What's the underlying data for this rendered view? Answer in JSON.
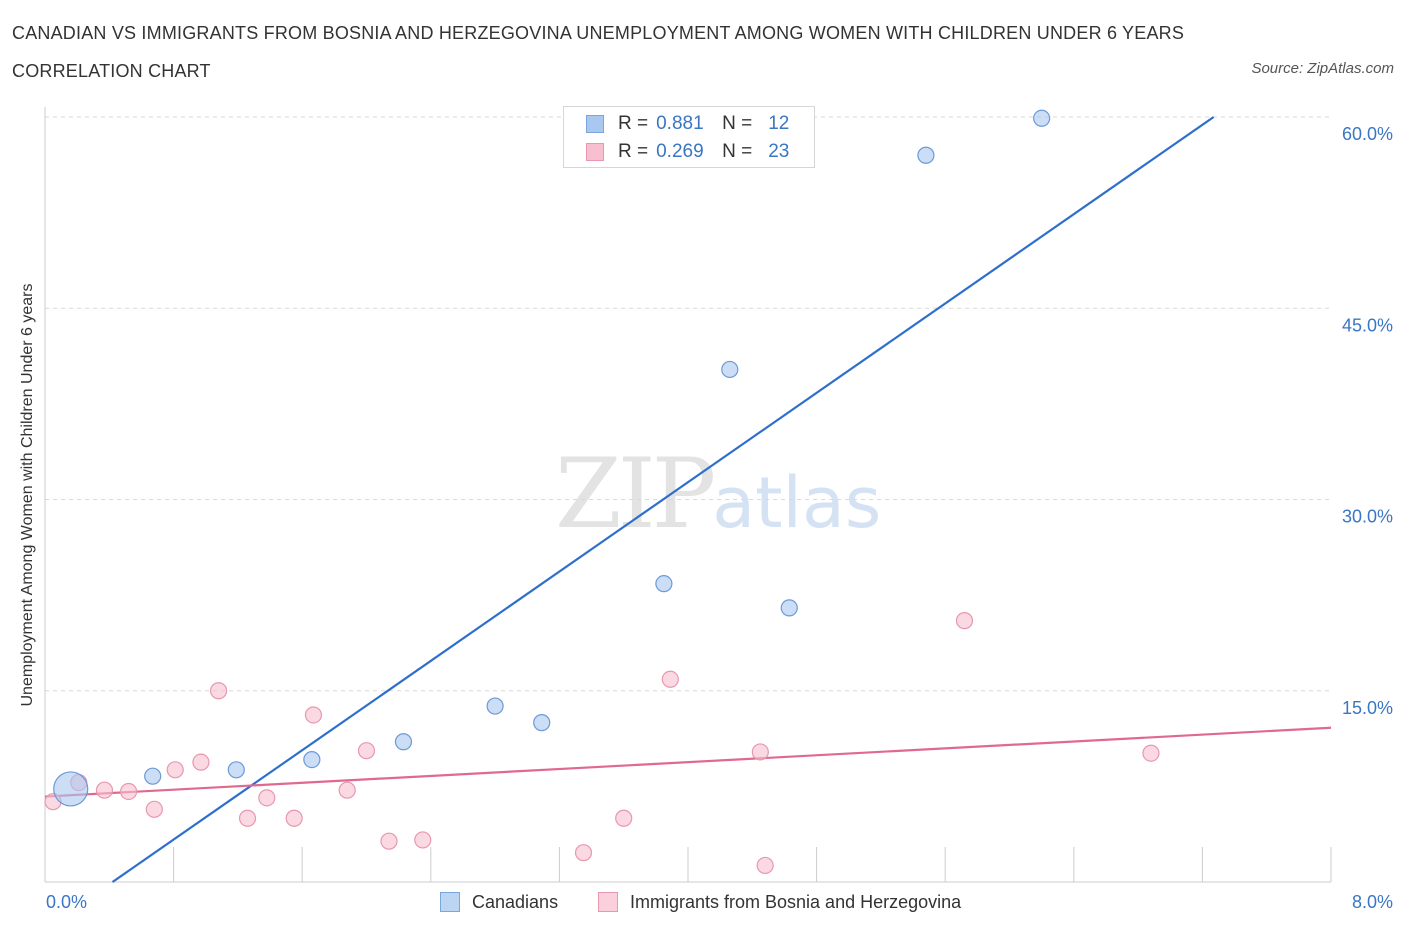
{
  "title": "CANADIAN VS IMMIGRANTS FROM BOSNIA AND HERZEGOVINA UNEMPLOYMENT AMONG WOMEN WITH CHILDREN UNDER 6 YEARS CORRELATION CHART",
  "source": "Source: ZipAtlas.com",
  "watermark": {
    "zip": "ZIP",
    "atlas": "atlas"
  },
  "legend_stats": [
    {
      "r_label": "R =",
      "r_value": "0.881",
      "n_label": "N =",
      "n_value": "12",
      "color": "#a9c8f0",
      "border": "#7aa5dd"
    },
    {
      "r_label": "R =",
      "r_value": "0.269",
      "n_label": "N =",
      "n_value": "23",
      "color": "#f7bfd0",
      "border": "#e897b1"
    }
  ],
  "chart_data": {
    "type": "scatter",
    "xlabel": "",
    "ylabel": "Unemployment Among Women with Children Under 6 years",
    "xlim": [
      0,
      8
    ],
    "ylim": [
      0,
      60
    ],
    "x_tick_labels": [
      {
        "value": 0,
        "label": "0.0%"
      },
      {
        "value": 8,
        "label": "8.0%"
      }
    ],
    "y_tick_labels": [
      {
        "value": 15,
        "label": "15.0%"
      },
      {
        "value": 30,
        "label": "30.0%"
      },
      {
        "value": 45,
        "label": "45.0%"
      },
      {
        "value": 60,
        "label": "60.0%"
      }
    ],
    "grid": "horizontal dashed",
    "legend_position": "bottom-center",
    "series": [
      {
        "name": "Canadians",
        "color": "#a9c8f0",
        "stroke": "#6b9ad8",
        "line_color": "#2e6fcc",
        "points": [
          {
            "x": 0.16,
            "y": 7.3,
            "large": true
          },
          {
            "x": 0.67,
            "y": 8.3
          },
          {
            "x": 1.19,
            "y": 8.8
          },
          {
            "x": 1.66,
            "y": 9.6
          },
          {
            "x": 2.23,
            "y": 11.0
          },
          {
            "x": 2.8,
            "y": 13.8
          },
          {
            "x": 3.09,
            "y": 12.5
          },
          {
            "x": 3.85,
            "y": 23.4
          },
          {
            "x": 4.26,
            "y": 40.2
          },
          {
            "x": 4.63,
            "y": 21.5
          },
          {
            "x": 5.48,
            "y": 57.0
          },
          {
            "x": 6.2,
            "y": 59.9
          }
        ],
        "trend": {
          "x1": 0.42,
          "y1": 0.0,
          "x2": 7.27,
          "y2": 60.0
        }
      },
      {
        "name": "Immigrants from Bosnia and Herzegovina",
        "color": "#f7bfd0",
        "stroke": "#e897b1",
        "line_color": "#e0698f",
        "points": [
          {
            "x": 0.05,
            "y": 6.3
          },
          {
            "x": 0.21,
            "y": 7.8
          },
          {
            "x": 0.37,
            "y": 7.2
          },
          {
            "x": 0.52,
            "y": 7.1
          },
          {
            "x": 0.68,
            "y": 5.7
          },
          {
            "x": 0.81,
            "y": 8.8
          },
          {
            "x": 0.97,
            "y": 9.4
          },
          {
            "x": 1.08,
            "y": 15.0
          },
          {
            "x": 1.26,
            "y": 5.0
          },
          {
            "x": 1.38,
            "y": 6.6
          },
          {
            "x": 1.55,
            "y": 5.0
          },
          {
            "x": 1.67,
            "y": 13.1
          },
          {
            "x": 1.88,
            "y": 7.2
          },
          {
            "x": 2.0,
            "y": 10.3
          },
          {
            "x": 2.14,
            "y": 3.2
          },
          {
            "x": 2.35,
            "y": 3.3
          },
          {
            "x": 3.35,
            "y": 2.3
          },
          {
            "x": 3.6,
            "y": 5.0
          },
          {
            "x": 3.89,
            "y": 15.9
          },
          {
            "x": 4.45,
            "y": 10.2
          },
          {
            "x": 4.48,
            "y": 1.3
          },
          {
            "x": 5.72,
            "y": 20.5
          },
          {
            "x": 6.88,
            "y": 10.1
          }
        ],
        "trend": {
          "x1": 0.0,
          "y1": 6.7,
          "x2": 8.0,
          "y2": 12.1
        }
      }
    ]
  }
}
